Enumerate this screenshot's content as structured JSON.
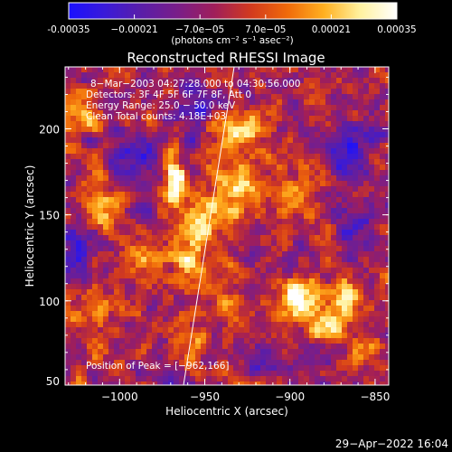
{
  "chart_data": {
    "type": "heatmap",
    "title": "Reconstructed RHESSI Image",
    "xlabel": "Heliocentric X (arcsec)",
    "ylabel": "Heliocentric Y (arcsec)",
    "xlim": [
      -1032,
      -842
    ],
    "ylim": [
      51,
      236
    ],
    "x_ticks": [
      -1000,
      -950,
      -900,
      -850
    ],
    "x_tick_labels": [
      "−1000",
      "−950",
      "−900",
      "−850"
    ],
    "y_ticks": [
      100,
      150,
      200
    ],
    "y_tick_labels": [
      "100",
      "150",
      "200"
    ],
    "y_min_label": "50",
    "colorbar": {
      "range": [
        -0.00035,
        0.00035
      ],
      "tick_values": [
        -0.00035,
        -0.00021,
        -7e-05,
        7e-05,
        0.00021,
        0.00035
      ],
      "tick_labels": [
        "-0.00035",
        "−0.00021",
        "−7.0e−05",
        "7.0e−05",
        "0.00021",
        "0.00035"
      ],
      "units_label": "(photons cm⁻² s⁻¹ asec⁻²)",
      "colormap_stops": [
        "#1a10ff",
        "#3a1ad8",
        "#5a1ea8",
        "#7a1e88",
        "#a01e5a",
        "#d23a1e",
        "#f06a0a",
        "#ffb020",
        "#fff2a0",
        "#ffffff"
      ]
    },
    "annotations": [
      "8−Mar−2003 04:27:28.000 to 04:30:56.000",
      "Detectors: 3F 4F 5F 6F 7F 8F, Att 0",
      "Energy Range: 25.0 − 50.0 keV",
      "Clean    Total counts: 4.18E+03"
    ],
    "peak_label": "Position of Peak = [−962,166]",
    "peak_position": [
      -962,
      166
    ],
    "limb_line_color": "#ffffff",
    "blobs": [
      {
        "x": -968,
        "y": 170,
        "amp": 0.00042,
        "sx": 4,
        "sy": 10
      },
      {
        "x": -955,
        "y": 135,
        "amp": 0.0003,
        "sx": 10,
        "sy": 16
      },
      {
        "x": -930,
        "y": 165,
        "amp": 0.00028,
        "sx": 10,
        "sy": 14
      },
      {
        "x": -928,
        "y": 200,
        "amp": 0.00024,
        "sx": 12,
        "sy": 10
      },
      {
        "x": -900,
        "y": 160,
        "amp": 0.00018,
        "sx": 10,
        "sy": 14
      },
      {
        "x": -895,
        "y": 100,
        "amp": 0.0004,
        "sx": 8,
        "sy": 8
      },
      {
        "x": -880,
        "y": 85,
        "amp": 0.00035,
        "sx": 6,
        "sy": 6
      },
      {
        "x": -870,
        "y": 100,
        "amp": 0.00025,
        "sx": 6,
        "sy": 10
      },
      {
        "x": -855,
        "y": 75,
        "amp": 0.0002,
        "sx": 6,
        "sy": 8
      },
      {
        "x": -1020,
        "y": 210,
        "amp": 0.00024,
        "sx": 6,
        "sy": 8
      },
      {
        "x": -1010,
        "y": 155,
        "amp": 0.0002,
        "sx": 8,
        "sy": 10
      },
      {
        "x": -985,
        "y": 125,
        "amp": 0.00018,
        "sx": 8,
        "sy": 8
      },
      {
        "x": -1015,
        "y": 95,
        "amp": 0.00016,
        "sx": 8,
        "sy": 10
      },
      {
        "x": -960,
        "y": 75,
        "amp": 0.00014,
        "sx": 8,
        "sy": 8
      },
      {
        "x": -1005,
        "y": 70,
        "amp": 0.00012,
        "sx": 8,
        "sy": 6
      },
      {
        "x": -935,
        "y": 95,
        "amp": 0.00016,
        "sx": 8,
        "sy": 8
      },
      {
        "x": -1025,
        "y": 130,
        "amp": -0.00024,
        "sx": 8,
        "sy": 12
      },
      {
        "x": -990,
        "y": 185,
        "amp": -0.0002,
        "sx": 10,
        "sy": 8
      },
      {
        "x": -955,
        "y": 215,
        "amp": -0.00018,
        "sx": 10,
        "sy": 8
      },
      {
        "x": -865,
        "y": 190,
        "amp": -0.00022,
        "sx": 8,
        "sy": 12
      },
      {
        "x": -860,
        "y": 140,
        "amp": -0.0002,
        "sx": 8,
        "sy": 10
      },
      {
        "x": -915,
        "y": 65,
        "amp": -0.00016,
        "sx": 10,
        "sy": 8
      }
    ]
  },
  "footer": {
    "timestamp": "29−Apr−2022 16:04"
  }
}
